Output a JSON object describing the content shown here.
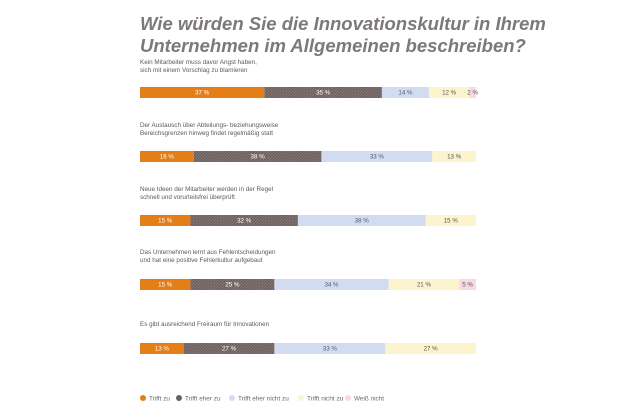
{
  "chart_data": {
    "type": "bar",
    "orientation": "horizontal",
    "stacked": true,
    "title": "Wie würden Sie die Innovationskultur in Ihrem Unternehmen im Allgemeinen beschreiben?",
    "title_lines": [
      "Wie würden Sie die Innovationskultur in Ihrem",
      "Unternehmen im Allgemeinen beschreiben?"
    ],
    "unit": "%",
    "legend_position": "bottom",
    "categories": [
      [
        "Kein Mitarbeiter muss davor Angst haben,",
        "sich mit einem Vorschlag zu blamieren"
      ],
      [
        "Der Austausch über Abteilungs- beziehungsweise",
        "Bereichsgrenzen hinweg findet regelmäßig statt"
      ],
      [
        "Neue Ideen der Mitarbeiter werden in der Regel",
        "schnell und vorurteilsfrei überprüft"
      ],
      [
        "Das Unternehmen lernt aus Fehlentscheidungen",
        "und hat eine positive Fehlerkultur aufgebaut"
      ],
      [
        "Es gibt ausreichend Freiraum für Innovationen"
      ]
    ],
    "series": [
      {
        "name": "Trifft zu",
        "color": "#e47e16",
        "label_color": "#ffffff",
        "pattern": false,
        "values": [
          37,
          16,
          15,
          15,
          13
        ]
      },
      {
        "name": "Trifft eher zu",
        "color": "#6e5f5f",
        "label_color": "#ffffff",
        "pattern": true,
        "values": [
          35,
          38,
          32,
          25,
          27
        ]
      },
      {
        "name": "Trifft eher nicht zu",
        "color": "#d2dcf1",
        "label_color": "#555566",
        "pattern": false,
        "values": [
          14,
          33,
          38,
          34,
          33
        ]
      },
      {
        "name": "Trifft nicht zu",
        "color": "#fcf4cd",
        "label_color": "#555555",
        "pattern": false,
        "values": [
          12,
          13,
          15,
          21,
          27
        ]
      },
      {
        "name": "Weiß nicht",
        "color": "#f8d9e3",
        "label_color": "#555555",
        "pattern": false,
        "values": [
          2,
          0,
          0,
          5,
          0
        ]
      }
    ]
  }
}
